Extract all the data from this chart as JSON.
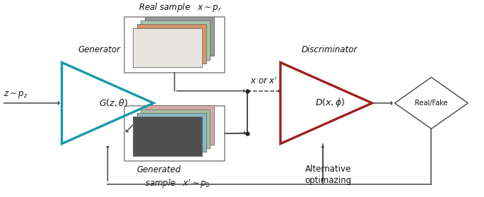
{
  "fig_width": 6.85,
  "fig_height": 2.79,
  "dpi": 100,
  "bg_color": "#ffffff",
  "gen_color": "#1899aa",
  "dis_color": "#9e2020",
  "arr_color": "#444444",
  "txt_color": "#111111",
  "gen_label": "Generator",
  "gen_formula": "$G(z,\\theta)$",
  "dis_label": "Discriminator",
  "dis_formula": "$D(x,\\phi)$",
  "real_label": "Real sample",
  "real_formula": "$x \\sim p_r$",
  "gen_sample_label1": "Generated",
  "gen_sample_label2": "sample",
  "gen_sample_formula": "$x' \\sim p_0$",
  "input_label": "$z \\sim p_z$",
  "mid_label": "$x$ or $x'$",
  "output_label": "Real/Fake",
  "alt_label1": "Alternative",
  "alt_label2": "optimazing",
  "card_colors_real": [
    "#999999",
    "#a8c8a8",
    "#d4956a",
    "#e8e4e0"
  ],
  "card_colors_gen": [
    "#d4aaa8",
    "#a8c0a0",
    "#88b8c8",
    "#505050"
  ],
  "xlim": [
    0,
    6.85
  ],
  "ylim": [
    0,
    2.79
  ],
  "fs_title": 9,
  "fs_label": 8.5,
  "fs_formula": 9
}
